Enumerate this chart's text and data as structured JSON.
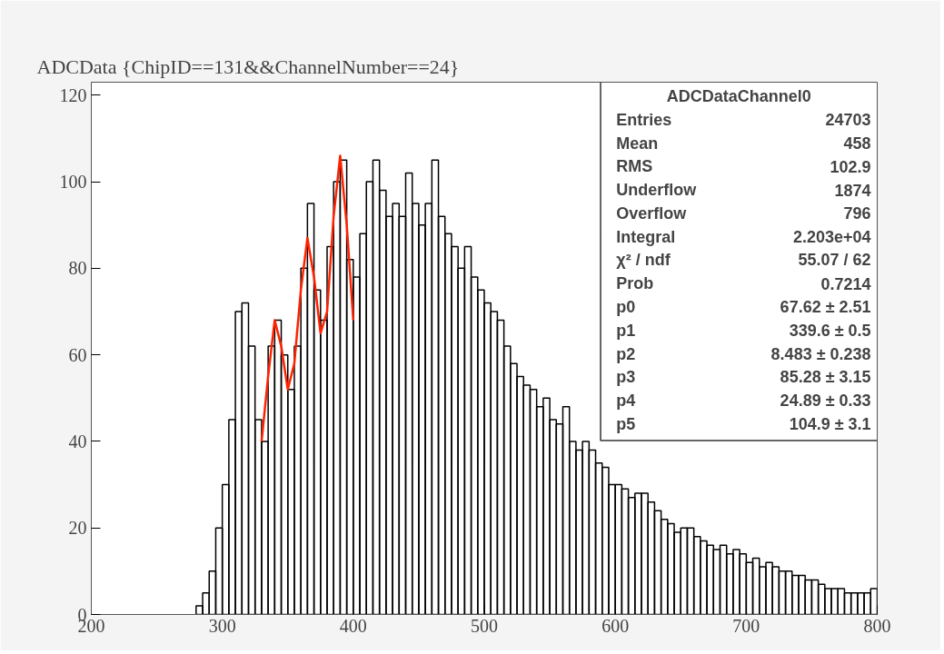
{
  "chart_data": {
    "type": "histogram",
    "title": "ADCData {ChipID==131&&ChannelNumber==24}",
    "xlim": [
      200,
      800
    ],
    "ylim": [
      0,
      123
    ],
    "xticks": [
      200,
      300,
      400,
      500,
      600,
      700,
      800
    ],
    "yticks": [
      0,
      20,
      40,
      60,
      80,
      100,
      120
    ],
    "grid": false,
    "series": [
      {
        "type": "histogram",
        "color": "#000000",
        "bins": [
          280,
          285,
          290,
          295,
          300,
          305,
          310,
          315,
          320,
          325,
          330,
          335,
          340,
          345,
          350,
          355,
          360,
          365,
          370,
          375,
          380,
          385,
          390,
          395,
          400,
          405,
          410,
          415,
          420,
          425,
          430,
          435,
          440,
          445,
          450,
          455,
          460,
          465,
          470,
          475,
          480,
          485,
          490,
          495,
          500,
          505,
          510,
          515,
          520,
          525,
          530,
          535,
          540,
          545,
          550,
          555,
          560,
          565,
          570,
          575,
          580,
          585,
          590,
          595,
          600,
          605,
          610,
          615,
          620,
          625,
          630,
          635,
          640,
          645,
          650,
          655,
          660,
          665,
          670,
          675,
          680,
          685,
          690,
          695,
          700,
          705,
          710,
          715,
          720,
          725,
          730,
          735,
          740,
          745,
          750,
          755,
          760,
          765,
          770,
          775,
          780,
          785,
          790,
          795,
          800
        ],
        "values": [
          2,
          5,
          10,
          20,
          30,
          45,
          70,
          72,
          62,
          45,
          40,
          62,
          68,
          60,
          52,
          62,
          80,
          95,
          75,
          68,
          85,
          100,
          105,
          82,
          78,
          88,
          100,
          105,
          98,
          92,
          95,
          92,
          102,
          95,
          90,
          95,
          105,
          92,
          88,
          85,
          80,
          85,
          78,
          75,
          72,
          70,
          68,
          62,
          58,
          55,
          53,
          52,
          48,
          50,
          45,
          44,
          48,
          40,
          38,
          40,
          38,
          35,
          34,
          30,
          30,
          29,
          27,
          28,
          28,
          26,
          24,
          22,
          21,
          19,
          20,
          20,
          18,
          17,
          16,
          15,
          16,
          14,
          15,
          14,
          12,
          13,
          11,
          12,
          11,
          10,
          10,
          9,
          9,
          8,
          8,
          7,
          6,
          6,
          6,
          5,
          5,
          5,
          5,
          6
        ]
      },
      {
        "type": "line",
        "color": "#ff2200",
        "x": [
          330,
          335,
          340,
          345,
          350,
          355,
          360,
          365,
          370,
          375,
          380,
          385,
          390,
          395,
          400
        ],
        "values": [
          40,
          55,
          68,
          62,
          52,
          58,
          75,
          87,
          78,
          65,
          70,
          92,
          106,
          90,
          68
        ]
      }
    ],
    "annotations": [
      "ADCDataChannel0",
      "Entries\t24703",
      "Mean\t458",
      "RMS\t102.9",
      "Underflow\t1874",
      "Overflow\t796",
      "Integral\t2.203e+04",
      "χ² / ndf\t55.07 / 62",
      "Prob\t0.7214",
      "p0\t67.62 ± 2.51",
      "p1\t339.6 ± 0.5",
      "p2\t8.483 ± 0.238",
      "p3\t85.28 ± 3.15",
      "p4\t24.89 ± 0.33",
      "p5\t104.9 ± 3.1"
    ]
  }
}
